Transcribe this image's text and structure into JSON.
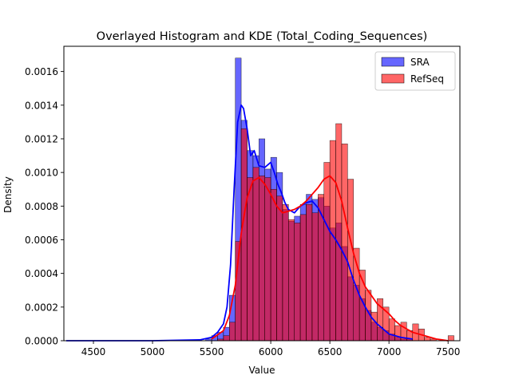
{
  "chart_data": {
    "type": "bar",
    "title": "Overlayed Histogram and KDE (Total_Coding_Sequences)",
    "xlabel": "Value",
    "ylabel": "Density",
    "xlim": [
      4250,
      7600
    ],
    "ylim": [
      0,
      0.00175
    ],
    "xticks": [
      4500,
      5000,
      5500,
      6000,
      6500,
      7000,
      7500
    ],
    "yticks": [
      0,
      0.0002,
      0.0004,
      0.0006,
      0.0008,
      0.001,
      0.0012,
      0.0014,
      0.0016
    ],
    "legend_position": "top-right",
    "grid": false,
    "series": [
      {
        "name": "SRA",
        "kind": "histogram",
        "color": "#0000ff",
        "bin_width": 50,
        "bins": [
          {
            "x0": 5450,
            "x1": 5500,
            "density": 1e-05
          },
          {
            "x0": 5500,
            "x1": 5550,
            "density": 3e-05
          },
          {
            "x0": 5550,
            "x1": 5600,
            "density": 5e-05
          },
          {
            "x0": 5600,
            "x1": 5650,
            "density": 8e-05
          },
          {
            "x0": 5650,
            "x1": 5700,
            "density": 0.00027
          },
          {
            "x0": 5700,
            "x1": 5750,
            "density": 0.00168
          },
          {
            "x0": 5750,
            "x1": 5800,
            "density": 0.00131
          },
          {
            "x0": 5800,
            "x1": 5850,
            "density": 0.00113
          },
          {
            "x0": 5850,
            "x1": 5900,
            "density": 0.0011
          },
          {
            "x0": 5900,
            "x1": 5950,
            "density": 0.0012
          },
          {
            "x0": 5950,
            "x1": 6000,
            "density": 0.00102
          },
          {
            "x0": 6000,
            "x1": 6050,
            "density": 0.00109
          },
          {
            "x0": 6050,
            "x1": 6100,
            "density": 0.001
          },
          {
            "x0": 6100,
            "x1": 6150,
            "density": 0.00078
          },
          {
            "x0": 6150,
            "x1": 6200,
            "density": 0.00071
          },
          {
            "x0": 6200,
            "x1": 6250,
            "density": 0.00074
          },
          {
            "x0": 6250,
            "x1": 6300,
            "density": 0.00081
          },
          {
            "x0": 6300,
            "x1": 6350,
            "density": 0.00087
          },
          {
            "x0": 6350,
            "x1": 6400,
            "density": 0.00084
          },
          {
            "x0": 6400,
            "x1": 6450,
            "density": 0.00085
          },
          {
            "x0": 6450,
            "x1": 6500,
            "density": 0.0008
          },
          {
            "x0": 6500,
            "x1": 6550,
            "density": 0.00067
          },
          {
            "x0": 6550,
            "x1": 6600,
            "density": 0.0007
          },
          {
            "x0": 6600,
            "x1": 6650,
            "density": 0.00056
          },
          {
            "x0": 6650,
            "x1": 6700,
            "density": 0.00038
          },
          {
            "x0": 6700,
            "x1": 6750,
            "density": 0.00033
          },
          {
            "x0": 6750,
            "x1": 6800,
            "density": 0.00025
          },
          {
            "x0": 6800,
            "x1": 6850,
            "density": 0.00018
          },
          {
            "x0": 6850,
            "x1": 6900,
            "density": 0.00011
          },
          {
            "x0": 6900,
            "x1": 6950,
            "density": 8e-05
          },
          {
            "x0": 6950,
            "x1": 7000,
            "density": 6e-05
          },
          {
            "x0": 7000,
            "x1": 7050,
            "density": 4e-05
          },
          {
            "x0": 7050,
            "x1": 7100,
            "density": 2e-05
          },
          {
            "x0": 7100,
            "x1": 7150,
            "density": 1e-05
          },
          {
            "x0": 7150,
            "x1": 7200,
            "density": 1e-05
          }
        ],
        "kde": {
          "x": [
            4270,
            5000,
            5400,
            5500,
            5550,
            5600,
            5630,
            5660,
            5690,
            5720,
            5750,
            5770,
            5800,
            5830,
            5860,
            5900,
            5950,
            6000,
            6030,
            6060,
            6090,
            6120,
            6150,
            6200,
            6250,
            6300,
            6350,
            6400,
            6450,
            6500,
            6550,
            6600,
            6650,
            6700,
            6750,
            6800,
            6850,
            6900,
            6950,
            7000,
            7100,
            7200
          ],
          "y": [
            0,
            0,
            5e-06,
            2e-05,
            5e-05,
            0.0001,
            0.0002,
            0.00045,
            0.0009,
            0.0013,
            0.0014,
            0.00138,
            0.00126,
            0.0011,
            0.00113,
            0.00104,
            0.00103,
            0.00106,
            0.001,
            0.00093,
            0.00088,
            0.00082,
            0.00078,
            0.00076,
            0.0008,
            0.00082,
            0.00083,
            0.00079,
            0.00072,
            0.00065,
            0.0006,
            0.00054,
            0.00047,
            0.00036,
            0.00027,
            0.0002,
            0.00014,
            0.0001,
            7e-05,
            4e-05,
            2e-05,
            1e-05
          ]
        }
      },
      {
        "name": "RefSeq",
        "kind": "histogram",
        "color": "#ff0000",
        "bin_width": 50,
        "bins": [
          {
            "x0": 5550,
            "x1": 5600,
            "density": 1e-05
          },
          {
            "x0": 5600,
            "x1": 5650,
            "density": 3e-05
          },
          {
            "x0": 5650,
            "x1": 5700,
            "density": 0.00011
          },
          {
            "x0": 5700,
            "x1": 5750,
            "density": 0.00059
          },
          {
            "x0": 5750,
            "x1": 5800,
            "density": 0.00126
          },
          {
            "x0": 5800,
            "x1": 5850,
            "density": 0.00097
          },
          {
            "x0": 5850,
            "x1": 5900,
            "density": 0.00103
          },
          {
            "x0": 5900,
            "x1": 5950,
            "density": 0.00098
          },
          {
            "x0": 5950,
            "x1": 6000,
            "density": 0.00097
          },
          {
            "x0": 6000,
            "x1": 6050,
            "density": 0.0009
          },
          {
            "x0": 6050,
            "x1": 6100,
            "density": 0.00086
          },
          {
            "x0": 6100,
            "x1": 6150,
            "density": 0.00081
          },
          {
            "x0": 6150,
            "x1": 6200,
            "density": 0.00072
          },
          {
            "x0": 6200,
            "x1": 6250,
            "density": 0.0007
          },
          {
            "x0": 6250,
            "x1": 6300,
            "density": 0.00075
          },
          {
            "x0": 6300,
            "x1": 6350,
            "density": 0.00081
          },
          {
            "x0": 6350,
            "x1": 6400,
            "density": 0.00076
          },
          {
            "x0": 6400,
            "x1": 6450,
            "density": 0.00087
          },
          {
            "x0": 6450,
            "x1": 6500,
            "density": 0.00106
          },
          {
            "x0": 6500,
            "x1": 6550,
            "density": 0.00119
          },
          {
            "x0": 6550,
            "x1": 6600,
            "density": 0.00129
          },
          {
            "x0": 6600,
            "x1": 6650,
            "density": 0.00117
          },
          {
            "x0": 6650,
            "x1": 6700,
            "density": 0.00096
          },
          {
            "x0": 6700,
            "x1": 6750,
            "density": 0.00055
          },
          {
            "x0": 6750,
            "x1": 6800,
            "density": 0.00042
          },
          {
            "x0": 6800,
            "x1": 6850,
            "density": 0.0003
          },
          {
            "x0": 6850,
            "x1": 6900,
            "density": 0.00017
          },
          {
            "x0": 6900,
            "x1": 6950,
            "density": 0.00025
          },
          {
            "x0": 6950,
            "x1": 7000,
            "density": 0.0002
          },
          {
            "x0": 7000,
            "x1": 7050,
            "density": 0.00013
          },
          {
            "x0": 7050,
            "x1": 7100,
            "density": 9e-05
          },
          {
            "x0": 7100,
            "x1": 7150,
            "density": 0.00011
          },
          {
            "x0": 7150,
            "x1": 7200,
            "density": 6e-05
          },
          {
            "x0": 7200,
            "x1": 7250,
            "density": 0.0001
          },
          {
            "x0": 7250,
            "x1": 7300,
            "density": 7e-05
          },
          {
            "x0": 7300,
            "x1": 7350,
            "density": 2e-05
          },
          {
            "x0": 7350,
            "x1": 7400,
            "density": 1e-05
          },
          {
            "x0": 7500,
            "x1": 7550,
            "density": 3e-05
          }
        ],
        "kde": {
          "x": [
            5500,
            5600,
            5650,
            5700,
            5750,
            5800,
            5850,
            5900,
            5950,
            6000,
            6050,
            6100,
            6150,
            6200,
            6250,
            6300,
            6350,
            6400,
            6450,
            6500,
            6550,
            6600,
            6650,
            6700,
            6750,
            6800,
            6850,
            6900,
            6950,
            7000,
            7050,
            7100,
            7150,
            7200,
            7250,
            7300,
            7350,
            7400,
            7450,
            7500
          ],
          "y": [
            1e-05,
            6e-05,
            0.00015,
            0.00033,
            0.00064,
            0.00085,
            0.00095,
            0.00097,
            0.00093,
            0.00087,
            0.0008,
            0.00076,
            0.00077,
            0.00078,
            0.0008,
            0.00083,
            0.00087,
            0.00091,
            0.00096,
            0.00098,
            0.00094,
            0.00083,
            0.00067,
            0.00052,
            0.0004,
            0.00032,
            0.00027,
            0.00022,
            0.00019,
            0.00016,
            0.00012,
            9e-05,
            7e-05,
            5e-05,
            4e-05,
            3e-05,
            2e-05,
            1e-05,
            5e-06,
            0
          ]
        }
      }
    ]
  }
}
